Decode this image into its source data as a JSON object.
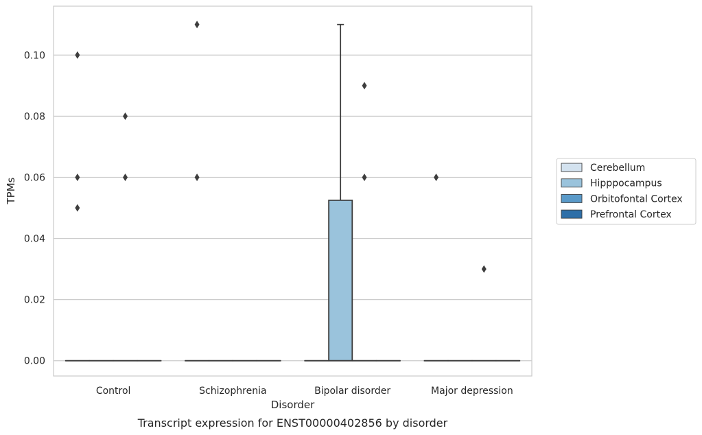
{
  "chart_data": {
    "type": "box",
    "title": "Transcript expression for ENST00000402856 by disorder",
    "xlabel": "Disorder",
    "ylabel": "TPMs",
    "ylim": [
      -0.005,
      0.116
    ],
    "yticks": [
      "0.00",
      "0.02",
      "0.04",
      "0.06",
      "0.08",
      "0.10"
    ],
    "grid": "horizontal",
    "legend_position": "right",
    "categories": [
      "Control",
      "Schizophrenia",
      "Bipolar disorder",
      "Major depression"
    ],
    "series": [
      {
        "name": "Cerebellum",
        "color": "#d3e2ef",
        "boxes": [
          {
            "q1": 0,
            "median": 0,
            "q3": 0,
            "whisker_low": 0,
            "whisker_high": 0,
            "outliers": [
              0.1,
              0.06,
              0.05
            ]
          },
          {
            "q1": 0,
            "median": 0,
            "q3": 0,
            "whisker_low": 0,
            "whisker_high": 0,
            "outliers": [
              0.11,
              0.06
            ]
          },
          {
            "q1": 0,
            "median": 0,
            "q3": 0,
            "whisker_low": 0,
            "whisker_high": 0,
            "outliers": []
          },
          {
            "q1": 0,
            "median": 0,
            "q3": 0,
            "whisker_low": 0,
            "whisker_high": 0,
            "outliers": [
              0.06
            ]
          }
        ]
      },
      {
        "name": "Hipppocampus",
        "color": "#9ac3dc",
        "boxes": [
          {
            "q1": 0,
            "median": 0,
            "q3": 0,
            "whisker_low": 0,
            "whisker_high": 0,
            "outliers": []
          },
          {
            "q1": 0,
            "median": 0,
            "q3": 0,
            "whisker_low": 0,
            "whisker_high": 0,
            "outliers": []
          },
          {
            "q1": 0,
            "median": 0,
            "q3": 0.0525,
            "whisker_low": 0,
            "whisker_high": 0.11,
            "outliers": []
          },
          {
            "q1": 0,
            "median": 0,
            "q3": 0,
            "whisker_low": 0,
            "whisker_high": 0,
            "outliers": []
          }
        ]
      },
      {
        "name": "Orbitofontal Cortex",
        "color": "#5a9ac9",
        "boxes": [
          {
            "q1": 0,
            "median": 0,
            "q3": 0,
            "whisker_low": 0,
            "whisker_high": 0,
            "outliers": [
              0.08,
              0.06
            ]
          },
          {
            "q1": 0,
            "median": 0,
            "q3": 0,
            "whisker_low": 0,
            "whisker_high": 0,
            "outliers": []
          },
          {
            "q1": 0,
            "median": 0,
            "q3": 0,
            "whisker_low": 0,
            "whisker_high": 0,
            "outliers": [
              0.09,
              0.06
            ]
          },
          {
            "q1": 0,
            "median": 0,
            "q3": 0,
            "whisker_low": 0,
            "whisker_high": 0,
            "outliers": [
              0.03
            ]
          }
        ]
      },
      {
        "name": "Prefrontal Cortex",
        "color": "#2e6fa8",
        "boxes": [
          {
            "q1": 0,
            "median": 0,
            "q3": 0,
            "whisker_low": 0,
            "whisker_high": 0,
            "outliers": []
          },
          {
            "q1": 0,
            "median": 0,
            "q3": 0,
            "whisker_low": 0,
            "whisker_high": 0,
            "outliers": []
          },
          {
            "q1": 0,
            "median": 0,
            "q3": 0,
            "whisker_low": 0,
            "whisker_high": 0,
            "outliers": []
          },
          {
            "q1": 0,
            "median": 0,
            "q3": 0,
            "whisker_low": 0,
            "whisker_high": 0,
            "outliers": []
          }
        ]
      }
    ]
  }
}
